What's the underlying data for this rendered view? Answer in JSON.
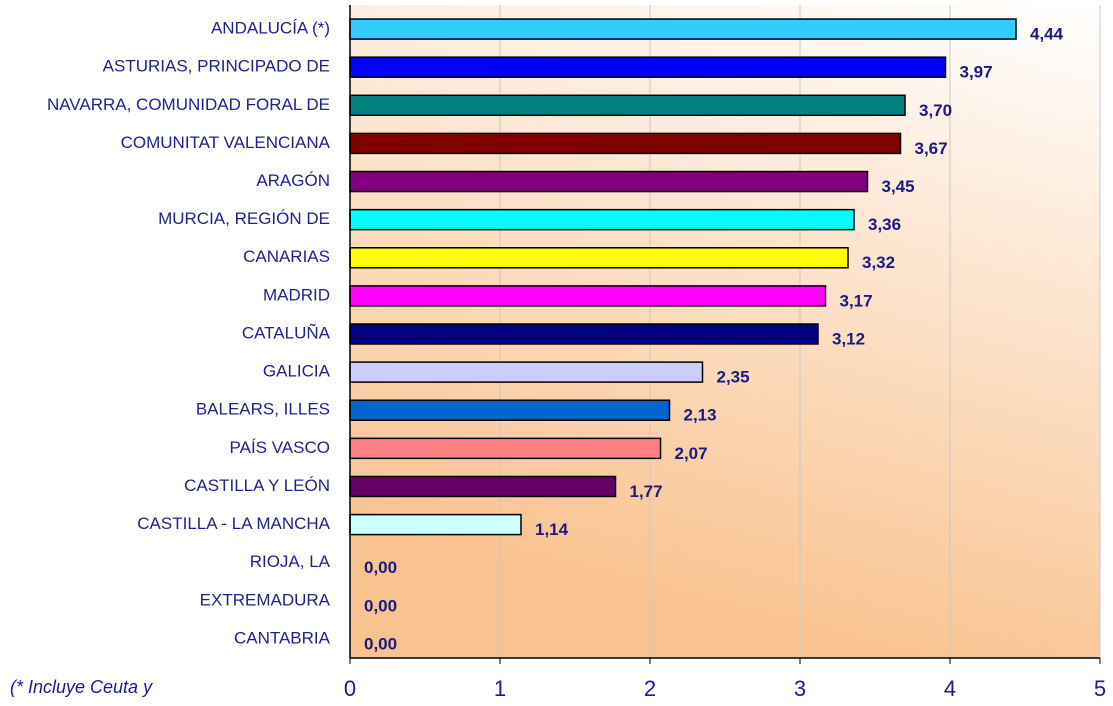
{
  "chart_data": {
    "type": "bar",
    "orientation": "horizontal",
    "categories": [
      "ANDALUCÍA (*)",
      "ASTURIAS, PRINCIPADO DE",
      "NAVARRA, COMUNIDAD FORAL DE",
      "COMUNITAT VALENCIANA",
      "ARAGÓN",
      "MURCIA, REGIÓN DE",
      "CANARIAS",
      "MADRID",
      "CATALUÑA",
      "GALICIA",
      "BALEARS, ILLES",
      "PAÍS VASCO",
      "CASTILLA Y LEÓN",
      "CASTILLA - LA MANCHA",
      "RIOJA, LA",
      "EXTREMADURA",
      "CANTABRIA"
    ],
    "values": [
      4.44,
      3.97,
      3.7,
      3.67,
      3.45,
      3.36,
      3.32,
      3.17,
      3.12,
      2.35,
      2.13,
      2.07,
      1.77,
      1.14,
      0,
      0,
      0
    ],
    "value_labels": [
      "4,44",
      "3,97",
      "3,70",
      "3,67",
      "3,45",
      "3,36",
      "3,32",
      "3,17",
      "3,12",
      "2,35",
      "2,13",
      "2,07",
      "1,77",
      "1,14",
      "0,00",
      "0,00",
      "0,00"
    ],
    "colors": [
      "#33ccff",
      "#0000ff",
      "#008080",
      "#800000",
      "#800080",
      "#00ffff",
      "#ffff00",
      "#ff00ff",
      "#000080",
      "#ccccff",
      "#0066cc",
      "#ff8080",
      "#660066",
      "#ccffff",
      "#993366",
      "#ffffcc",
      "#ff6600"
    ],
    "xlim": [
      0,
      5
    ],
    "xticks": [
      0,
      1,
      2,
      3,
      4,
      5
    ],
    "grid": true,
    "annotation": "(* Incluye  Ceuta y"
  }
}
